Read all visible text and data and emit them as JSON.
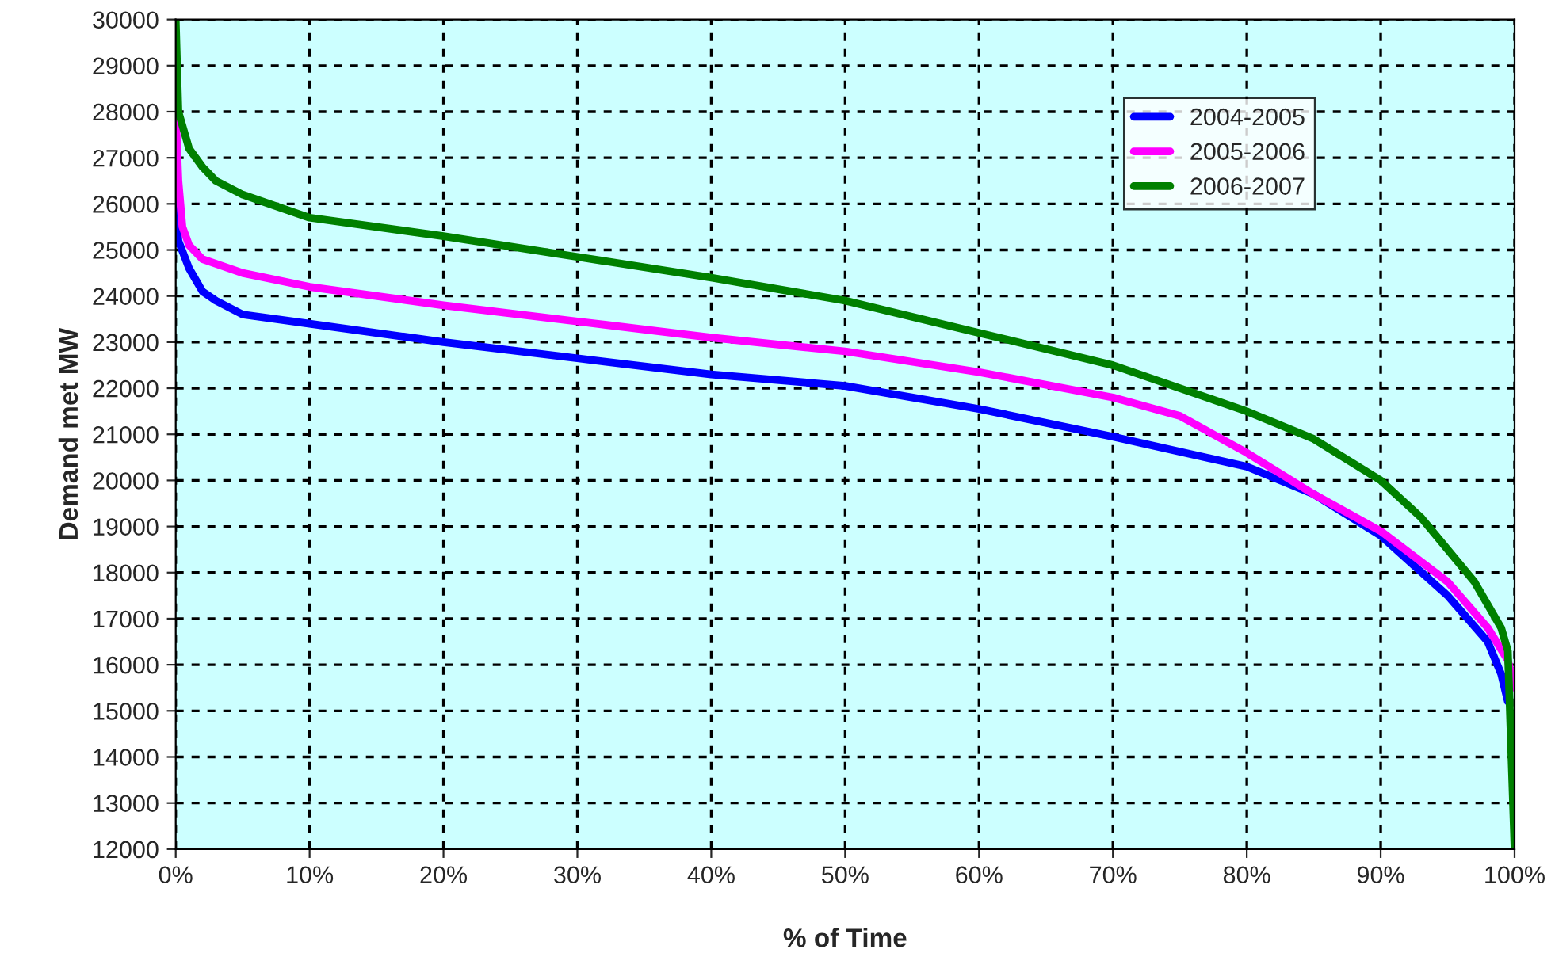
{
  "chart_data": {
    "type": "line",
    "xlabel": "% of Time",
    "ylabel": "Demand met MW",
    "xlim": [
      0,
      100
    ],
    "ylim": [
      12000,
      30000
    ],
    "xticks": [
      {
        "value": 0,
        "label": "0%"
      },
      {
        "value": 10,
        "label": "10%"
      },
      {
        "value": 20,
        "label": "20%"
      },
      {
        "value": 30,
        "label": "30%"
      },
      {
        "value": 40,
        "label": "40%"
      },
      {
        "value": 50,
        "label": "50%"
      },
      {
        "value": 60,
        "label": "60%"
      },
      {
        "value": 70,
        "label": "70%"
      },
      {
        "value": 80,
        "label": "80%"
      },
      {
        "value": 90,
        "label": "90%"
      },
      {
        "value": 100,
        "label": "100%"
      }
    ],
    "yticks": [
      12000,
      13000,
      14000,
      15000,
      16000,
      17000,
      18000,
      19000,
      20000,
      21000,
      22000,
      23000,
      24000,
      25000,
      26000,
      27000,
      28000,
      29000,
      30000
    ],
    "grid": true,
    "legend": "top right",
    "line_style": "solid",
    "marker": "none",
    "series": [
      {
        "name": "2004-2005",
        "color": "#0000ff",
        "x": [
          0,
          0.2,
          1,
          2,
          3,
          5,
          10,
          20,
          30,
          40,
          50,
          60,
          70,
          80,
          85,
          90,
          95,
          98,
          99,
          99.5
        ],
        "values": [
          26000,
          25200,
          24600,
          24100,
          23900,
          23600,
          23400,
          23000,
          22650,
          22300,
          22050,
          21550,
          20950,
          20300,
          19700,
          18800,
          17500,
          16500,
          15800,
          15200
        ]
      },
      {
        "name": "2005-2006",
        "color": "#ff00ff",
        "x": [
          0,
          0.2,
          0.5,
          1,
          2,
          5,
          10,
          20,
          30,
          40,
          50,
          60,
          70,
          75,
          80,
          85,
          90,
          95,
          98,
          99.5,
          100
        ],
        "values": [
          28000,
          26500,
          25500,
          25100,
          24800,
          24500,
          24200,
          23800,
          23450,
          23100,
          22800,
          22350,
          21800,
          21400,
          20600,
          19700,
          18900,
          17800,
          16800,
          16100,
          15500
        ]
      },
      {
        "name": "2006-2007",
        "color": "#008000",
        "x": [
          0,
          0.2,
          1,
          2,
          3,
          5,
          10,
          20,
          30,
          40,
          50,
          60,
          70,
          80,
          85,
          90,
          93,
          95,
          97,
          99,
          99.5,
          100
        ],
        "values": [
          30000,
          28000,
          27200,
          26800,
          26500,
          26200,
          25700,
          25300,
          24850,
          24400,
          23900,
          23200,
          22500,
          21500,
          20900,
          20000,
          19200,
          18500,
          17800,
          16800,
          16300,
          12000
        ]
      }
    ]
  }
}
